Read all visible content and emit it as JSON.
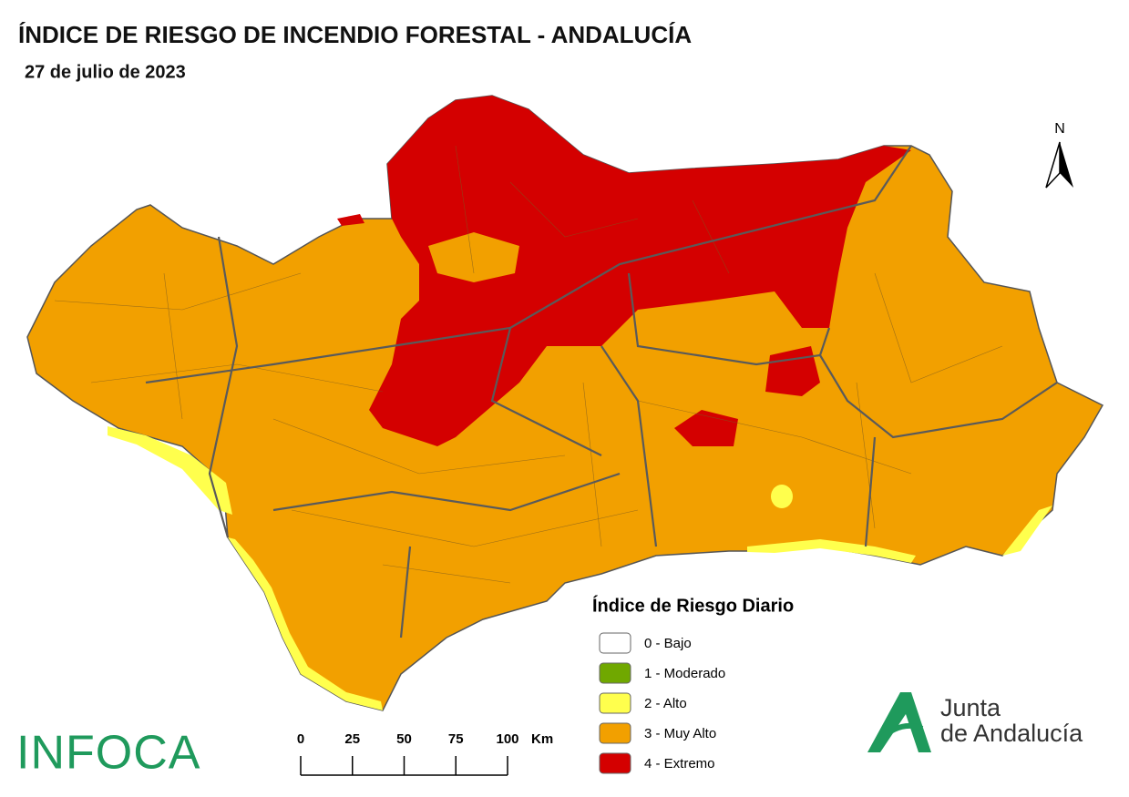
{
  "header": {
    "title": "ÍNDICE DE RIESGO DE INCENDIO FORESTAL - ANDALUCÍA",
    "subtitle": "27 de julio de 2023"
  },
  "north": "N",
  "legend": {
    "title": "Índice de Riesgo Diario",
    "items": [
      {
        "label": "0 - Bajo",
        "color": "#ffffff"
      },
      {
        "label": "1 - Moderado",
        "color": "#70a800"
      },
      {
        "label": "2 - Alto",
        "color": "#ffff4d"
      },
      {
        "label": "3 - Muy Alto",
        "color": "#f2a000"
      },
      {
        "label": "4 - Extremo",
        "color": "#d40000"
      }
    ]
  },
  "scale_bar": {
    "labels": [
      0,
      25,
      50,
      75,
      100
    ],
    "unit": "Km"
  },
  "logos": {
    "infoca": "INFOCA",
    "junta_line1": "Junta",
    "junta_line2": "de Andalucía"
  }
}
